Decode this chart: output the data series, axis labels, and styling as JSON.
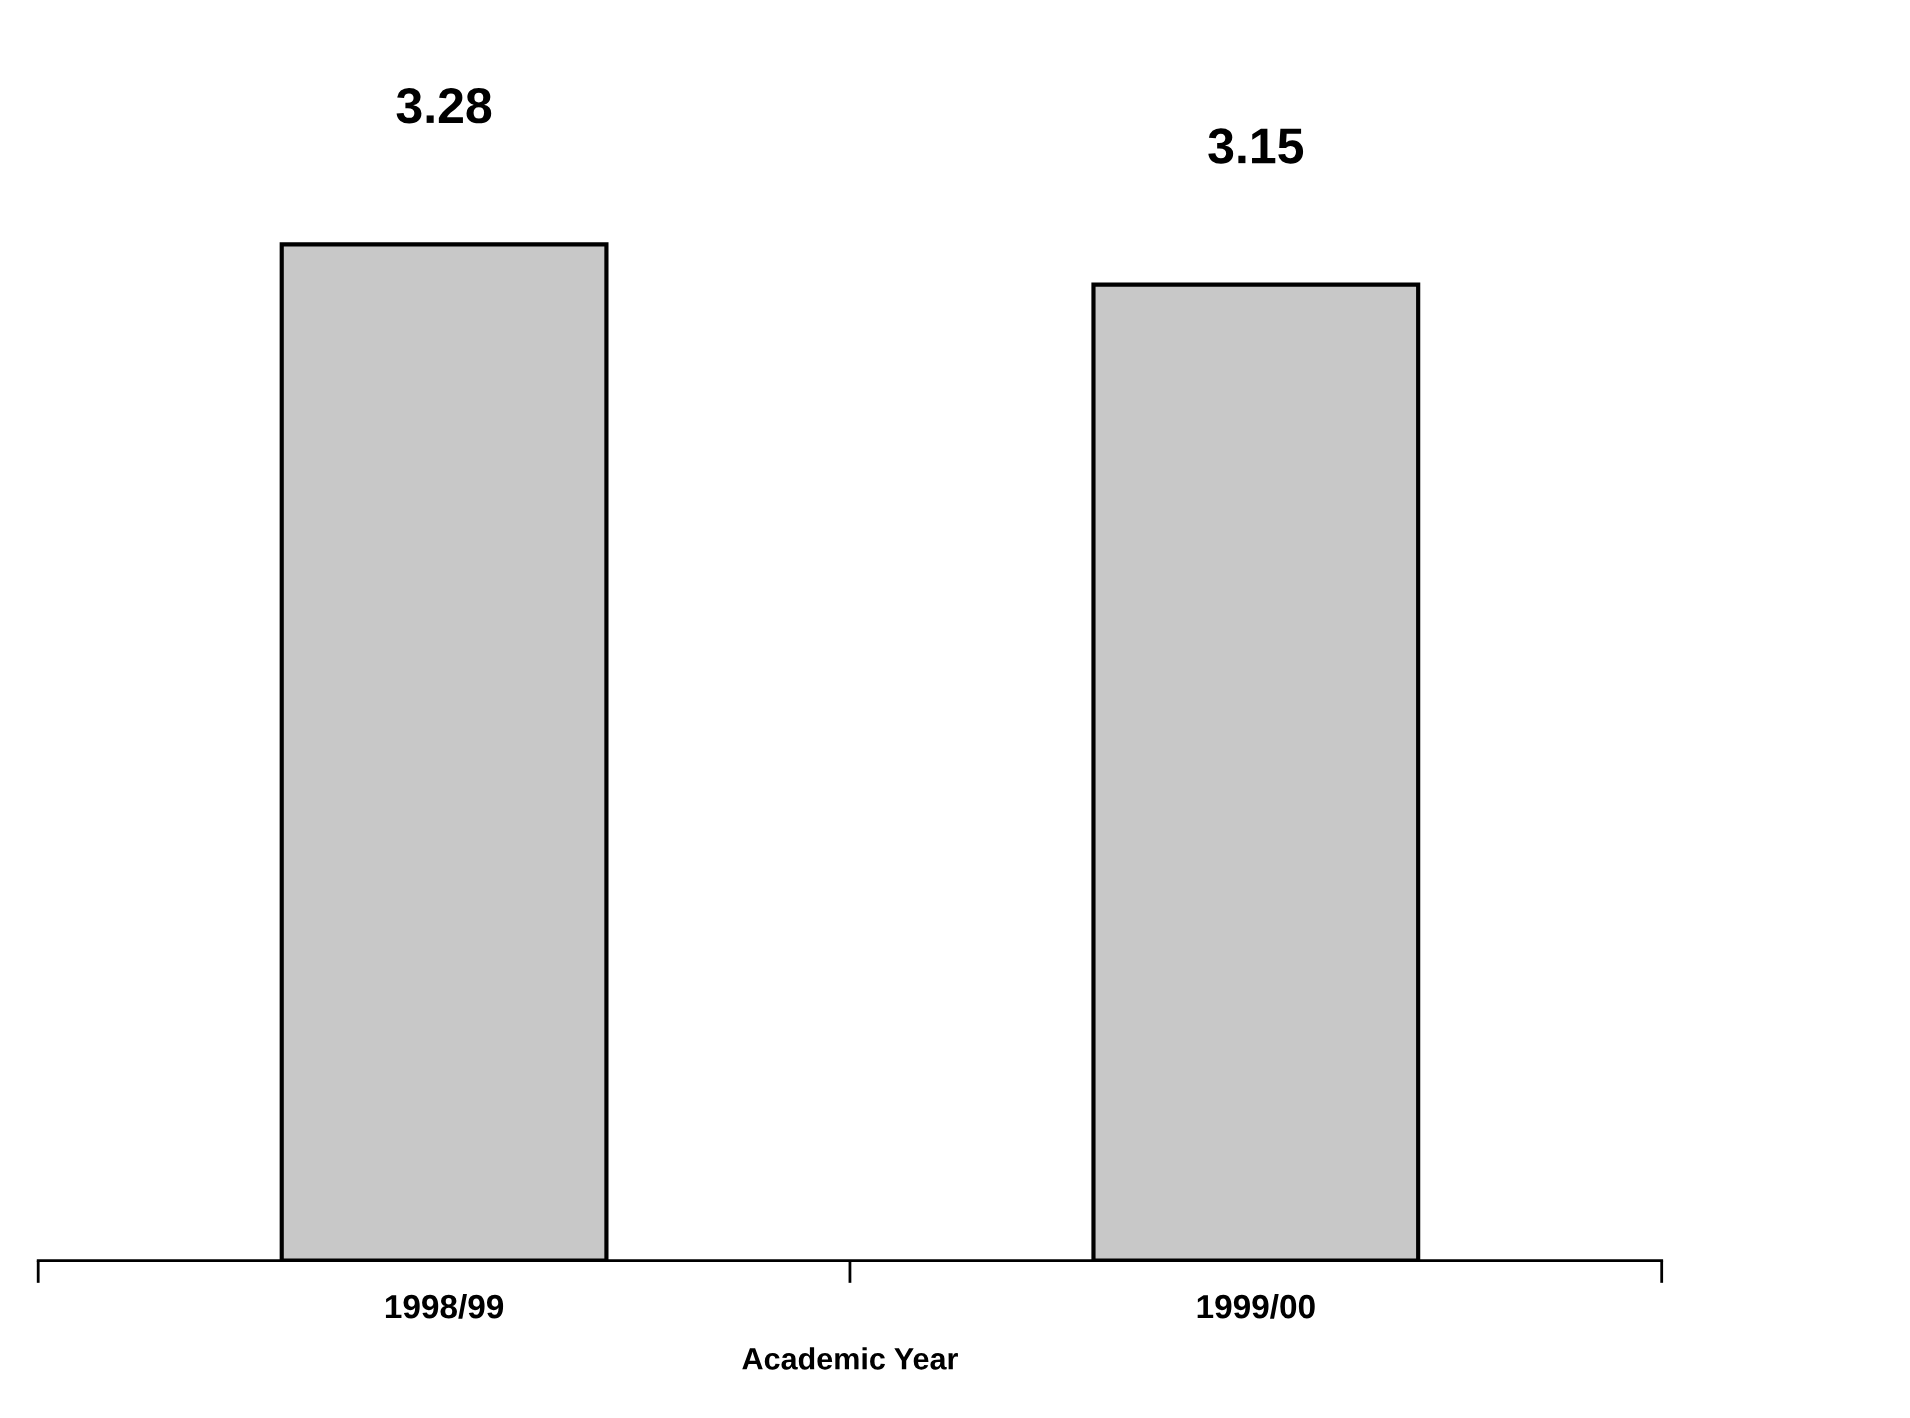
{
  "chart_data": {
    "type": "bar",
    "xlabel": "Academic Year",
    "categories": [
      "1998/99",
      "1999/00"
    ],
    "values": [
      3.28,
      3.15
    ],
    "color": "#c8c8c8",
    "data_labels": true,
    "grid": false,
    "legend": false
  }
}
